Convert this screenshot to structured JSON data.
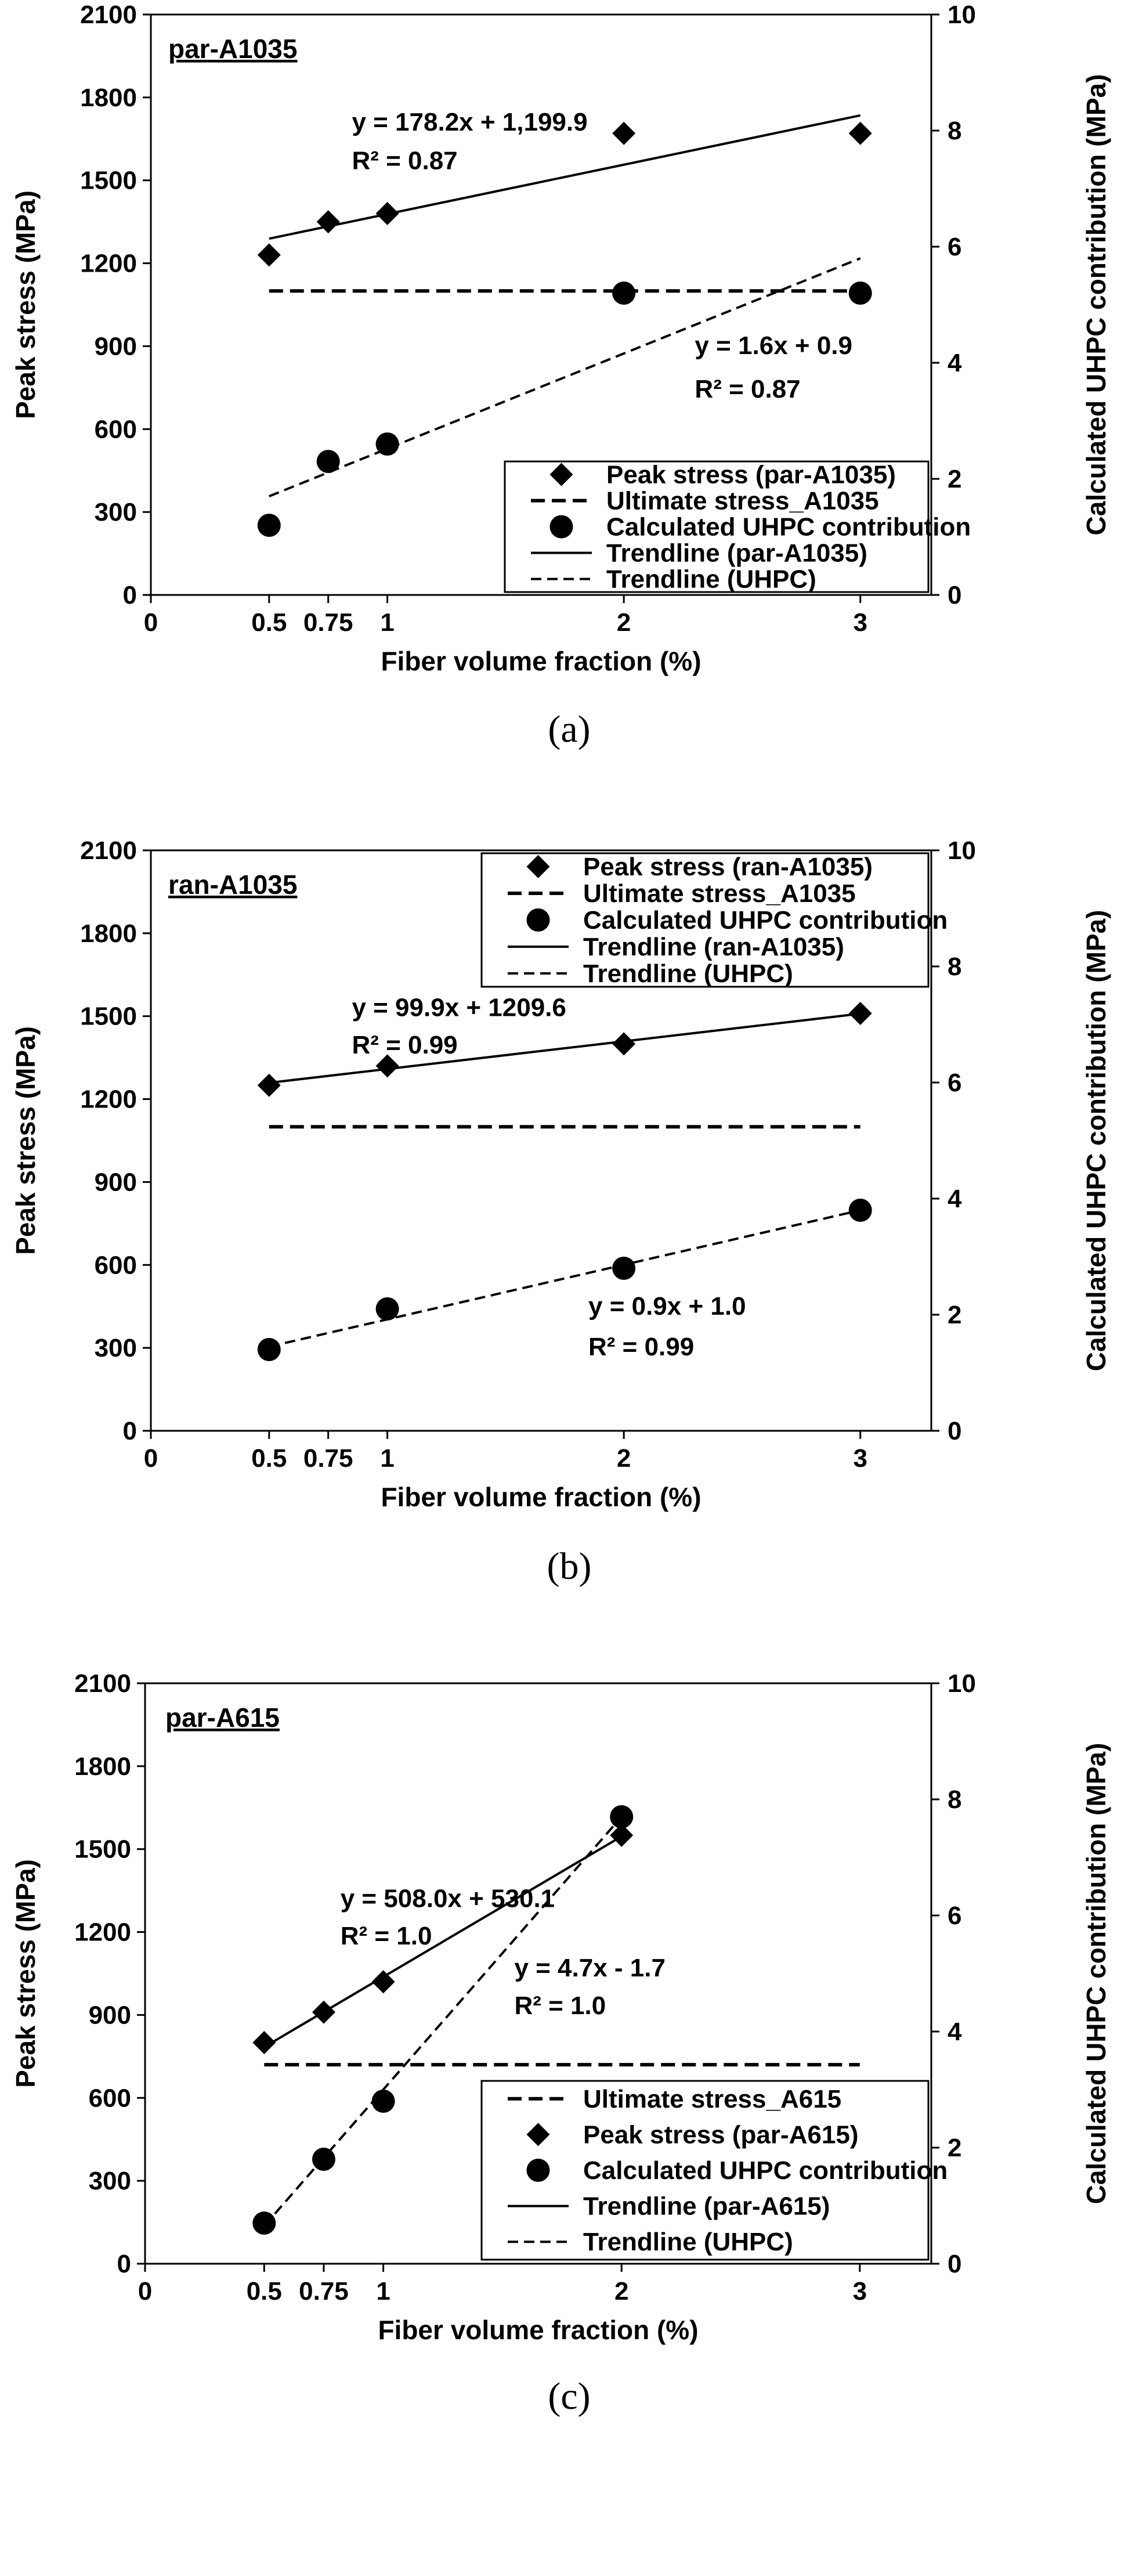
{
  "chart_data": [
    {
      "type": "scatter",
      "panel_label": "par-A1035",
      "caption": "(a)",
      "xlabel": "Fiber volume fraction (%)",
      "ylabel": "Peak stress (MPa)",
      "y2label": "Calculated UHPC contribution (MPa)",
      "xlim": [
        0,
        3.3
      ],
      "ylim": [
        0,
        2100
      ],
      "y2lim": [
        0,
        10
      ],
      "x_ticks": [
        "0",
        "0.5",
        "0.75",
        "1",
        "2",
        "3"
      ],
      "x_tick_values": [
        0,
        0.5,
        0.75,
        1,
        2,
        3
      ],
      "y_ticks": [
        0,
        300,
        600,
        900,
        1200,
        1500,
        1800,
        2100
      ],
      "y2_ticks": [
        0,
        2,
        4,
        6,
        8,
        10
      ],
      "grid": false,
      "legend_position": "bottom-right",
      "series": [
        {
          "name": "Peak stress (par-A1035)",
          "axis": "left",
          "marker": "diamond",
          "x": [
            0.5,
            0.75,
            1,
            2,
            3
          ],
          "y": [
            1230,
            1350,
            1380,
            1670,
            1670
          ]
        },
        {
          "name": "Ultimate stress_A1035",
          "axis": "left",
          "style": "dashed-thick",
          "x": [
            0.5,
            3
          ],
          "y": [
            1100,
            1100
          ]
        },
        {
          "name": "Calculated UHPC contribution",
          "axis": "right",
          "marker": "circle",
          "x": [
            0.5,
            0.75,
            1,
            2,
            3
          ],
          "y": [
            1.2,
            2.3,
            2.6,
            5.2,
            5.2
          ]
        },
        {
          "name": "Trendline (par-A1035)",
          "axis": "left",
          "style": "solid",
          "x": [
            0.5,
            3
          ],
          "y": [
            1289,
            1735
          ]
        },
        {
          "name": "Trendline (UHPC)",
          "axis": "right",
          "style": "dashed",
          "x": [
            0.5,
            3
          ],
          "y": [
            1.7,
            5.8
          ]
        }
      ],
      "annotations": [
        {
          "text": "y = 178.2x + 1,199.9",
          "x": 0.85,
          "y": 1680
        },
        {
          "text": "R² = 0.87",
          "x": 0.85,
          "y": 1540
        },
        {
          "text": "y = 1.6x + 0.9",
          "x": 2.3,
          "y": 4.15
        },
        {
          "text": "R² = 0.87",
          "x": 2.3,
          "y": 3.4
        }
      ]
    },
    {
      "type": "scatter",
      "panel_label": "ran-A1035",
      "caption": "(b)",
      "xlabel": "Fiber volume fraction (%)",
      "ylabel": "Peak stress (MPa)",
      "y2label": "Calculated UHPC contribution (MPa)",
      "xlim": [
        0,
        3.3
      ],
      "ylim": [
        0,
        2100
      ],
      "y2lim": [
        0,
        10
      ],
      "x_ticks": [
        "0",
        "0.5",
        "0.75",
        "1",
        "2",
        "3"
      ],
      "x_tick_values": [
        0,
        0.5,
        0.75,
        1,
        2,
        3
      ],
      "y_ticks": [
        0,
        300,
        600,
        900,
        1200,
        1500,
        1800,
        2100
      ],
      "y2_ticks": [
        0,
        2,
        4,
        6,
        8,
        10
      ],
      "grid": false,
      "legend_position": "top-right",
      "series": [
        {
          "name": "Peak stress (ran-A1035)",
          "axis": "left",
          "marker": "diamond",
          "x": [
            0.5,
            1,
            2,
            3
          ],
          "y": [
            1250,
            1320,
            1400,
            1510
          ]
        },
        {
          "name": "Ultimate stress_A1035",
          "axis": "left",
          "style": "dashed-thick",
          "x": [
            0.5,
            3
          ],
          "y": [
            1100,
            1100
          ]
        },
        {
          "name": "Calculated UHPC contribution",
          "axis": "right",
          "marker": "circle",
          "x": [
            0.5,
            1,
            2,
            3
          ],
          "y": [
            1.4,
            2.1,
            2.8,
            3.8
          ]
        },
        {
          "name": "Trendline (ran-A1035)",
          "axis": "left",
          "style": "solid",
          "x": [
            0.5,
            3
          ],
          "y": [
            1259,
            1509
          ]
        },
        {
          "name": "Trendline (UHPC)",
          "axis": "right",
          "style": "dashed",
          "x": [
            0.5,
            3
          ],
          "y": [
            1.45,
            3.8
          ]
        }
      ],
      "annotations": [
        {
          "text": "y = 99.9x + 1209.6",
          "x": 0.85,
          "y": 1500
        },
        {
          "text": "R² = 0.99",
          "x": 0.85,
          "y": 1365
        },
        {
          "text": "y = 0.9x + 1.0",
          "x": 1.85,
          "y": 2.0
        },
        {
          "text": "R² = 0.99",
          "x": 1.85,
          "y": 1.3
        }
      ]
    },
    {
      "type": "scatter",
      "panel_label": "par-A615",
      "caption": "(c)",
      "xlabel": "Fiber volume fraction (%)",
      "ylabel": "Peak stress (MPa)",
      "y2label": "Calculated UHPC contribution (MPa)",
      "xlim": [
        0,
        3.3
      ],
      "ylim": [
        0,
        2100
      ],
      "y2lim": [
        0,
        10
      ],
      "x_ticks": [
        "0",
        "0.5",
        "0.75",
        "1",
        "2",
        "3"
      ],
      "x_tick_values": [
        0,
        0.5,
        0.75,
        1,
        2,
        3
      ],
      "y_ticks": [
        0,
        300,
        600,
        900,
        1200,
        1500,
        1800,
        2100
      ],
      "y2_ticks": [
        0,
        2,
        4,
        6,
        8,
        10
      ],
      "grid": false,
      "legend_position": "bottom-right",
      "series": [
        {
          "name": "Ultimate stress_A615",
          "axis": "left",
          "style": "dashed-thick",
          "x": [
            0.5,
            3
          ],
          "y": [
            720,
            720
          ]
        },
        {
          "name": "Peak stress (par-A615)",
          "axis": "left",
          "marker": "diamond",
          "x": [
            0.5,
            0.75,
            1,
            2
          ],
          "y": [
            800,
            910,
            1020,
            1550
          ]
        },
        {
          "name": "Calculated UHPC contribution",
          "axis": "right",
          "marker": "circle",
          "x": [
            0.5,
            0.75,
            1,
            2
          ],
          "y": [
            0.7,
            1.8,
            2.8,
            7.7
          ]
        },
        {
          "name": "Trendline (par-A615)",
          "axis": "left",
          "style": "solid",
          "x": [
            0.5,
            2
          ],
          "y": [
            784,
            1546
          ]
        },
        {
          "name": "Trendline (UHPC)",
          "axis": "right",
          "style": "dashed",
          "x": [
            0.5,
            2
          ],
          "y": [
            0.65,
            7.7
          ]
        }
      ],
      "annotations": [
        {
          "text": "y = 508.0x + 530.1",
          "x": 0.82,
          "y": 1290
        },
        {
          "text": "R² = 1.0",
          "x": 0.82,
          "y": 1155
        },
        {
          "text": "y = 4.7x - 1.7",
          "x": 1.55,
          "y": 4.95
        },
        {
          "text": "R² = 1.0",
          "x": 1.55,
          "y": 4.3
        }
      ]
    }
  ]
}
